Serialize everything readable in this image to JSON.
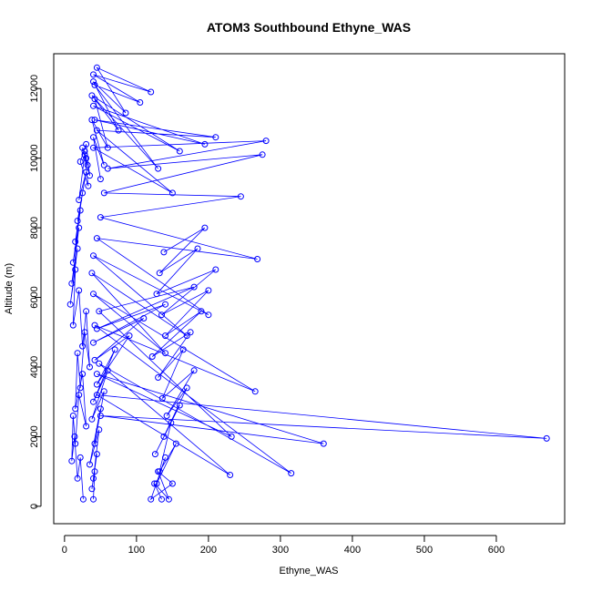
{
  "chart_data": {
    "type": "line",
    "title": "ATOM3 Southbound Ethyne_WAS",
    "xlabel": "Ethyne_WAS",
    "ylabel": "Altitude (m)",
    "xlim": [
      -15,
      695
    ],
    "ylim": [
      -500,
      13000
    ],
    "xticks": [
      "0",
      "100",
      "200",
      "300",
      "400",
      "500",
      "600"
    ],
    "yticks": [
      "0",
      "2000",
      "4000",
      "6000",
      "8000",
      "10000",
      "12000"
    ],
    "grid": false,
    "legend": "none",
    "marker": "open-circle",
    "colors": {
      "series": "#0000ff",
      "text": "#000000",
      "frame": "#000000"
    },
    "series": [
      {
        "x": [
          40,
          42,
          38,
          45,
          40,
          48,
          35,
          50,
          42,
          55,
          38,
          60,
          40,
          70,
          45,
          90,
          42,
          110,
          40,
          140,
          45,
          180,
          48,
          232,
          45,
          360,
          50,
          670,
          45,
          230,
          48,
          315,
          42,
          265,
          40,
          140,
          38,
          170,
          40,
          200,
          45,
          268,
          50,
          245,
          55,
          275,
          60,
          280,
          40,
          150,
          45,
          210,
          42,
          195,
          40,
          160,
          38,
          130,
          42,
          105,
          40,
          120,
          45,
          85,
          40,
          75,
          42,
          60,
          38,
          55,
          40,
          50
        ],
        "y": [
          200,
          1000,
          500,
          1500,
          800,
          2200,
          1200,
          2800,
          1800,
          3300,
          2500,
          3900,
          3000,
          4500,
          3500,
          4900,
          4200,
          5400,
          4700,
          5800,
          5100,
          6300,
          5600,
          2000,
          3800,
          1800,
          2600,
          1950,
          3200,
          900,
          4100,
          950,
          5200,
          3300,
          6100,
          4400,
          6700,
          4900,
          7200,
          5500,
          7700,
          7100,
          8300,
          8900,
          9000,
          10100,
          9700,
          10500,
          10300,
          9000,
          10800,
          10600,
          11100,
          10400,
          11500,
          10200,
          11800,
          9700,
          12100,
          11600,
          12400,
          11900,
          12600,
          11300,
          12200,
          10800,
          11700,
          10300,
          11100,
          9800,
          10600,
          9400
        ]
      },
      {
        "x": [
          30,
          28,
          32,
          25,
          35,
          30,
          22,
          33,
          28,
          20,
          30,
          18,
          25,
          15,
          22,
          12,
          20,
          10,
          18,
          8,
          15,
          12,
          20,
          25,
          30,
          35,
          28,
          22,
          18,
          15,
          25,
          30,
          20,
          15,
          12,
          10,
          14,
          18,
          22,
          26
        ],
        "y": [
          10000,
          10200,
          9800,
          10300,
          9500,
          10400,
          9900,
          9200,
          10100,
          8800,
          9600,
          8200,
          9000,
          7600,
          8500,
          7000,
          8000,
          6400,
          7400,
          5800,
          6800,
          5200,
          6200,
          4600,
          5600,
          4000,
          5000,
          3400,
          4400,
          2800,
          3800,
          2300,
          3200,
          1800,
          2600,
          1300,
          2000,
          800,
          1400,
          200
        ]
      },
      {
        "x": [
          135,
          125,
          145,
          130,
          150,
          120,
          140,
          128,
          155,
          132,
          148,
          126,
          160,
          138,
          170,
          142,
          180,
          136,
          165,
          130,
          175,
          122,
          190,
          140,
          200,
          135,
          210,
          128,
          185,
          132,
          195,
          138
        ],
        "y": [
          200,
          650,
          200,
          1000,
          650,
          200,
          1400,
          650,
          1800,
          1000,
          2400,
          1500,
          2900,
          2000,
          3400,
          2600,
          3900,
          3100,
          4500,
          3700,
          5000,
          4300,
          5600,
          4900,
          6200,
          5500,
          6800,
          6100,
          7400,
          6700,
          8000,
          7300
        ]
      }
    ]
  }
}
